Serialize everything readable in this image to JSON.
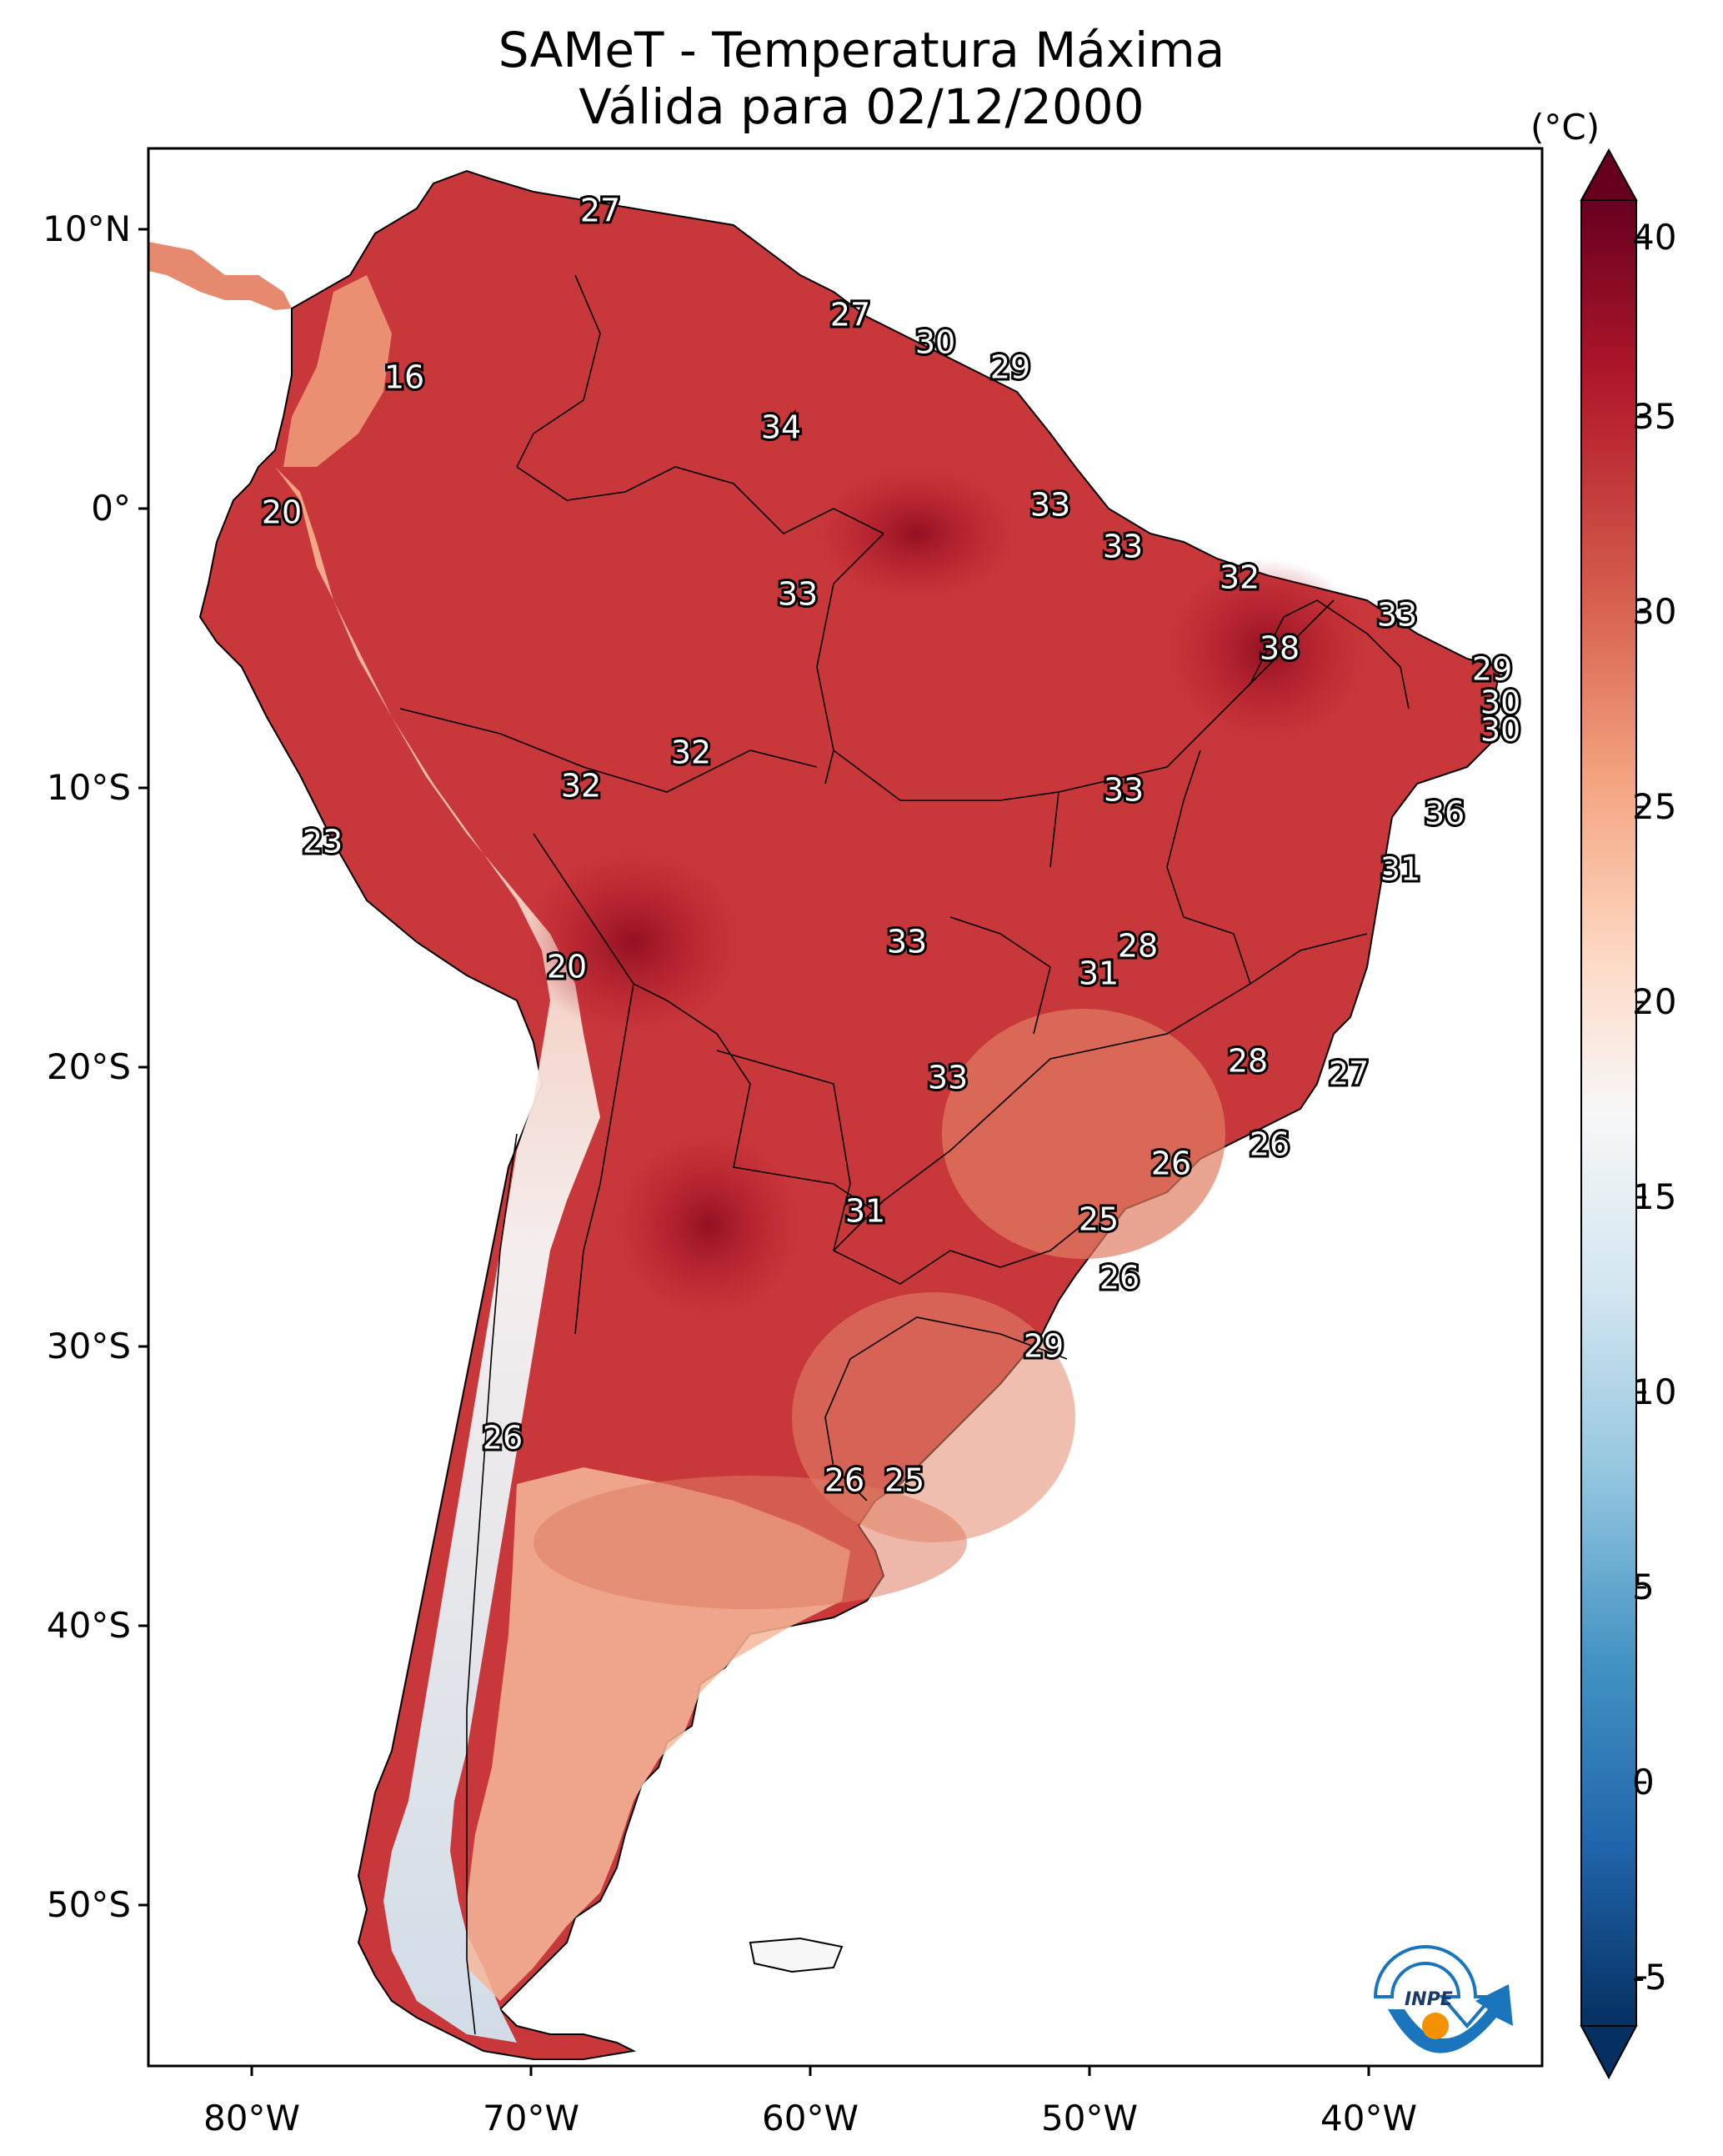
{
  "title": {
    "line1": "SAMeT - Temperatura Máxima",
    "line2": "Válida para 02/12/2000"
  },
  "colorbar": {
    "unit": "(°C)",
    "ticks": [
      "40",
      "35",
      "30",
      "25",
      "20",
      "15",
      "10",
      "5",
      "0",
      "-5"
    ],
    "colors": [
      "#053061",
      "#2166ac",
      "#4393c3",
      "#92c5de",
      "#d1e5f0",
      "#f7f7f7",
      "#fddbc7",
      "#f4a582",
      "#d6604d",
      "#b2182b",
      "#67001f"
    ]
  },
  "axes": {
    "lat_labels": [
      "10°N",
      "0°",
      "10°S",
      "20°S",
      "30°S",
      "40°S",
      "50°S"
    ],
    "lon_labels": [
      "80°W",
      "70°W",
      "60°W",
      "50°W",
      "40°W"
    ]
  },
  "station_values": [
    "27",
    "16",
    "27",
    "30",
    "29",
    "34",
    "20",
    "33",
    "33",
    "33",
    "32",
    "33",
    "38",
    "29",
    "30",
    "30",
    "33",
    "32",
    "32",
    "36",
    "23",
    "31",
    "20",
    "33",
    "31",
    "28",
    "33",
    "28",
    "27",
    "26",
    "26",
    "31",
    "25",
    "26",
    "29",
    "26",
    "26",
    "25"
  ],
  "logo": {
    "text": "INPE"
  }
}
